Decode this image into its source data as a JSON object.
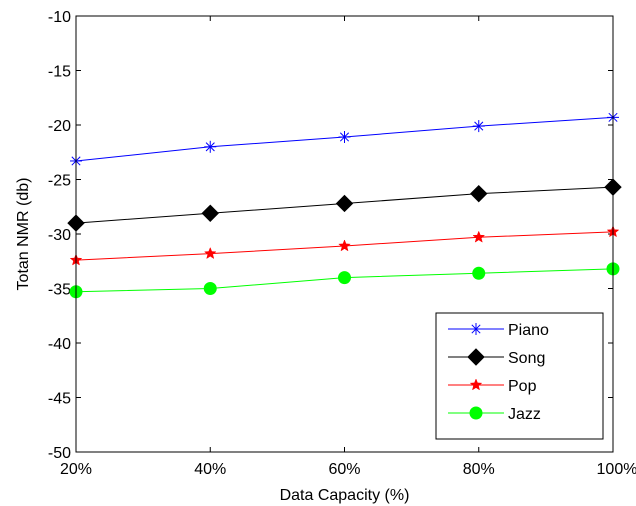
{
  "chart_data": {
    "type": "line",
    "title": "",
    "xlabel": "Data Capacity (%)",
    "ylabel": "Totan NMR (db)",
    "categories": [
      "20%",
      "40%",
      "60%",
      "80%",
      "100%"
    ],
    "ylim": [
      -50,
      -10
    ],
    "yticks": [
      -10,
      -15,
      -20,
      -25,
      -30,
      -35,
      -40,
      -45,
      -50
    ],
    "grid": false,
    "legend_position": "bottom-right",
    "series": [
      {
        "name": "Piano",
        "color": "#0000ff",
        "marker": "asterisk",
        "values": [
          -23.3,
          -22.0,
          -21.1,
          -20.1,
          -19.3
        ]
      },
      {
        "name": "Song",
        "color": "#000000",
        "marker": "diamond",
        "values": [
          -29.0,
          -28.1,
          -27.2,
          -26.3,
          -25.7
        ]
      },
      {
        "name": "Pop",
        "color": "#ff0000",
        "marker": "star",
        "values": [
          -32.4,
          -31.8,
          -31.1,
          -30.3,
          -29.8
        ]
      },
      {
        "name": "Jazz",
        "color": "#00ff00",
        "marker": "circle",
        "values": [
          -35.3,
          -35.0,
          -34.0,
          -33.6,
          -33.2
        ]
      }
    ]
  }
}
